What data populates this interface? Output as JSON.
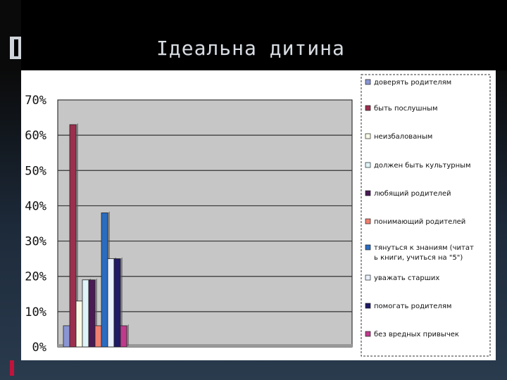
{
  "slide": {
    "title": "Ідеальна дитина"
  },
  "chart_data": {
    "type": "bar",
    "title": "",
    "xlabel": "",
    "ylabel": "",
    "ylim": [
      0,
      70
    ],
    "y_ticks": [
      "0%",
      "10%",
      "20%",
      "30%",
      "40%",
      "50%",
      "60%",
      "70%"
    ],
    "grid": true,
    "legend_position": "right",
    "series": [
      {
        "name": "доверять родителям",
        "value": 6,
        "color": "#8a96d4"
      },
      {
        "name": "быть послушным",
        "value": 63,
        "color": "#9c2f4e"
      },
      {
        "name": "неизбалованым",
        "value": 13,
        "color": "#fafae6"
      },
      {
        "name": "должен быть культурным",
        "value": 19,
        "color": "#dff4f8"
      },
      {
        "name": "любящий родителей",
        "value": 19,
        "color": "#4a1a55"
      },
      {
        "name": "понимающий родителей",
        "value": 6,
        "color": "#f08070"
      },
      {
        "name": "тянуться к знаниям (читать книги, учиться на \"5\")",
        "value": 38,
        "color": "#2b6cc0"
      },
      {
        "name": "уважать старших",
        "value": 25,
        "color": "#e8f0fc"
      },
      {
        "name": "помогать родителям",
        "value": 25,
        "color": "#1e1a66"
      },
      {
        "name": "без вредных привычек",
        "value": 6,
        "color": "#c03a8c"
      }
    ]
  }
}
